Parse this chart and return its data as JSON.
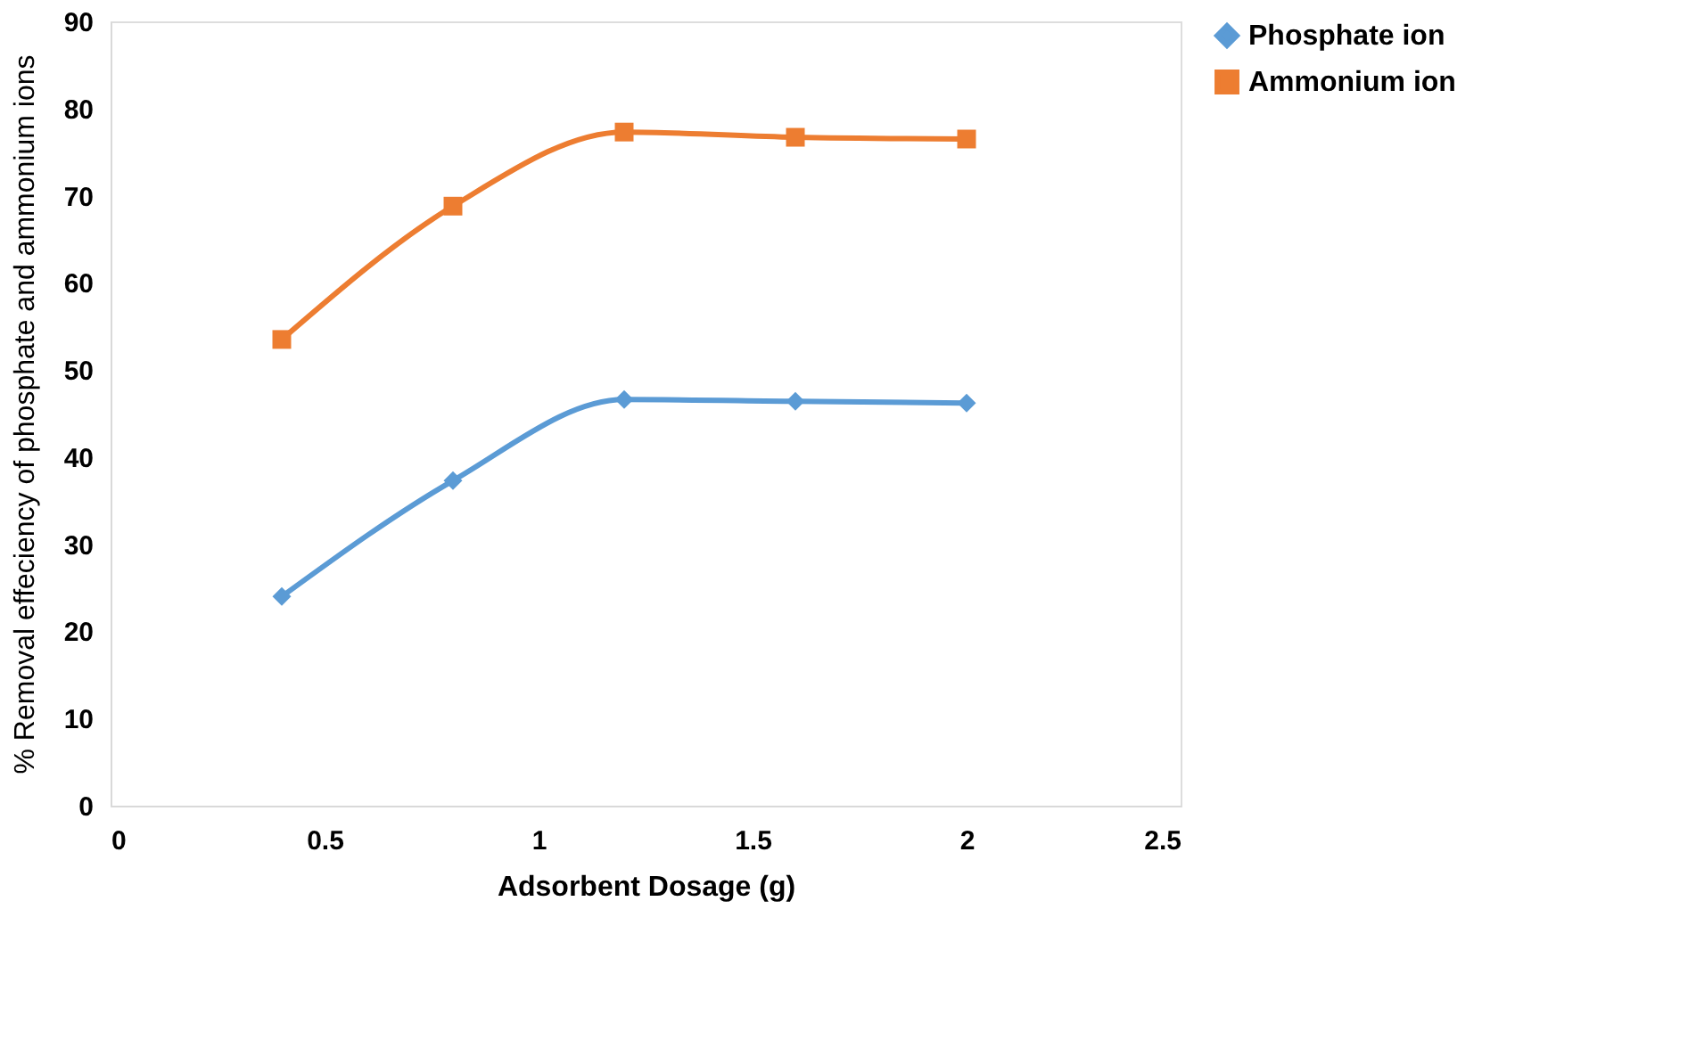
{
  "chart_data": {
    "type": "line",
    "xlabel": "Adsorbent Dosage (g)",
    "ylabel": "% Removal effeciency of phosphate and ammonium ions",
    "x": [
      0.4,
      0.8,
      1.2,
      1.6,
      2.0
    ],
    "series": [
      {
        "name": "Phosphate ion",
        "color": "#5b9bd5",
        "marker": "diamond",
        "values": [
          24.0,
          37.3,
          46.6,
          46.4,
          46.2
        ]
      },
      {
        "name": "Ammonium ion",
        "color": "#ed7d31",
        "marker": "square",
        "values": [
          53.5,
          68.8,
          77.3,
          76.7,
          76.5
        ]
      }
    ],
    "xlim": [
      0,
      2.5
    ],
    "xticks": [
      0,
      0.5,
      1,
      1.5,
      2,
      2.5
    ],
    "ylim": [
      0,
      90
    ],
    "yticks": [
      0,
      10,
      20,
      30,
      40,
      50,
      60,
      70,
      80,
      90
    ],
    "grid": false,
    "legend": "right",
    "line_style": "solid"
  }
}
